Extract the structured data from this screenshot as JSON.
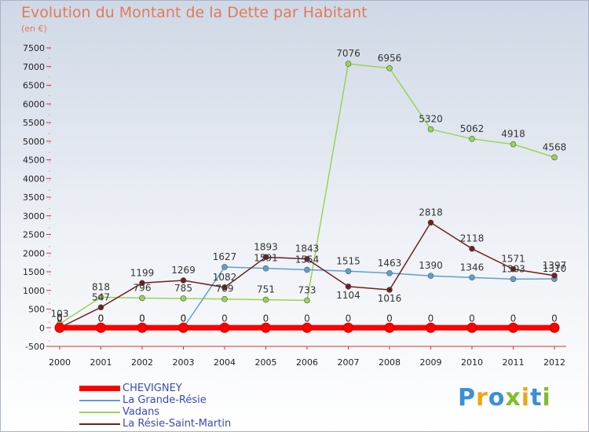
{
  "title": "Evolution du Montant de la Dette par Habitant",
  "subtitle": "(en €)",
  "brand": "Proxiti",
  "chart_data": {
    "type": "line",
    "title": "Evolution du Montant de la Dette par Habitant",
    "ylabel": "(en €)",
    "x": [
      "2000",
      "2001",
      "2002",
      "2003",
      "2004",
      "2005",
      "2006",
      "2007",
      "2008",
      "2009",
      "2010",
      "2011",
      "2012"
    ],
    "ylim": [
      -500,
      7500
    ],
    "yticks": [
      -500,
      0,
      500,
      1000,
      1500,
      2000,
      2500,
      3000,
      3500,
      4000,
      4500,
      5000,
      5500,
      6000,
      6500,
      7000,
      7500
    ],
    "grid": false,
    "legend_position": "bottom-left",
    "series": [
      {
        "name": "CHEVIGNEY",
        "color": "#ff0000",
        "values": [
          0,
          0,
          0,
          0,
          0,
          0,
          0,
          0,
          0,
          0,
          0,
          0,
          0
        ],
        "labels": [
          "0",
          "0",
          "0",
          "0",
          "0",
          "0",
          "0",
          "0",
          "0",
          "0",
          "0",
          "0",
          "0"
        ]
      },
      {
        "name": "La Grande-Résie",
        "color": "#5f9fd0",
        "values": [
          0,
          0,
          0,
          0,
          1627,
          1591,
          1554,
          1515,
          1463,
          1390,
          1346,
          1303,
          1310
        ],
        "labels": [
          "0",
          "0",
          "0",
          "0",
          "1627",
          "1591",
          "1554",
          "1515",
          "1463",
          "1390",
          "1346",
          "1303",
          "1310"
        ]
      },
      {
        "name": "Vadans",
        "color": "#99d455",
        "values": [
          103,
          818,
          796,
          785,
          769,
          751,
          733,
          7076,
          6956,
          5320,
          5062,
          4918,
          4568
        ],
        "labels": [
          "103",
          "818",
          "796",
          "785",
          "769",
          "751",
          "733",
          "7076",
          "6956",
          "5320",
          "5062",
          "4918",
          "4568"
        ]
      },
      {
        "name": "La Résie-Saint-Martin",
        "color": "#6e2020",
        "values": [
          0,
          547,
          1199,
          1269,
          1082,
          1893,
          1843,
          1104,
          1016,
          2818,
          2118,
          1571,
          1397
        ],
        "labels": [
          "0",
          "547",
          "1199",
          "1269",
          "1082",
          "1893",
          "1843",
          "1104",
          "1016",
          "2818",
          "2118",
          "1571",
          "1397"
        ]
      }
    ]
  }
}
